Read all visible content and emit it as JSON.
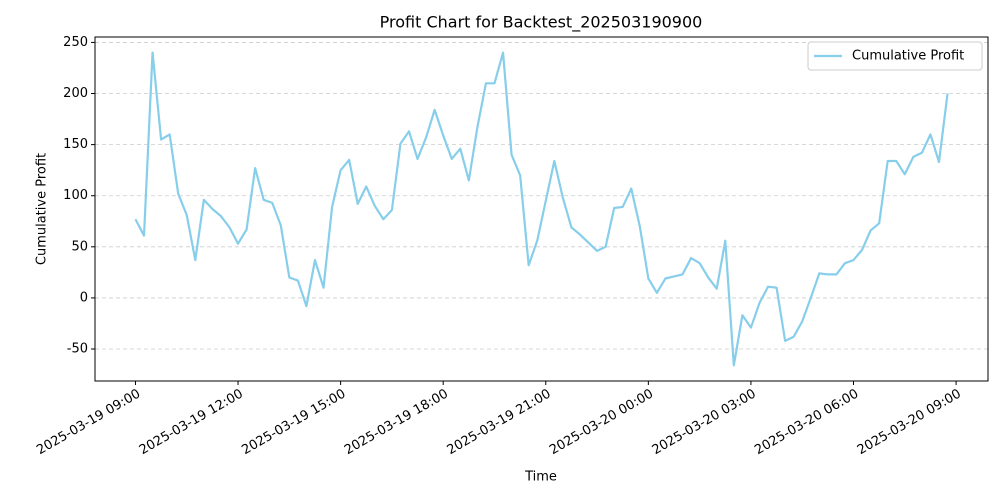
{
  "chart_data": {
    "type": "line",
    "title": "Profit Chart for Backtest_202503190900",
    "x_label": "Time",
    "y_label": "Cumulative Profit",
    "x": [
      "2025-03-19 09:00",
      "2025-03-19 09:15",
      "2025-03-19 09:30",
      "2025-03-19 09:45",
      "2025-03-19 10:00",
      "2025-03-19 10:15",
      "2025-03-19 10:30",
      "2025-03-19 10:45",
      "2025-03-19 11:00",
      "2025-03-19 11:15",
      "2025-03-19 11:30",
      "2025-03-19 11:45",
      "2025-03-19 12:00",
      "2025-03-19 12:15",
      "2025-03-19 12:30",
      "2025-03-19 12:45",
      "2025-03-19 13:00",
      "2025-03-19 13:15",
      "2025-03-19 13:30",
      "2025-03-19 13:45",
      "2025-03-19 14:00",
      "2025-03-19 14:15",
      "2025-03-19 14:30",
      "2025-03-19 14:45",
      "2025-03-19 15:00",
      "2025-03-19 15:15",
      "2025-03-19 15:30",
      "2025-03-19 15:45",
      "2025-03-19 16:00",
      "2025-03-19 16:15",
      "2025-03-19 16:30",
      "2025-03-19 16:45",
      "2025-03-19 17:00",
      "2025-03-19 17:15",
      "2025-03-19 17:30",
      "2025-03-19 17:45",
      "2025-03-19 18:00",
      "2025-03-19 18:15",
      "2025-03-19 18:30",
      "2025-03-19 18:45",
      "2025-03-19 19:00",
      "2025-03-19 19:15",
      "2025-03-19 19:30",
      "2025-03-19 19:45",
      "2025-03-19 20:00",
      "2025-03-19 20:15",
      "2025-03-19 20:30",
      "2025-03-19 20:45",
      "2025-03-19 21:00",
      "2025-03-19 21:15",
      "2025-03-19 21:30",
      "2025-03-19 21:45",
      "2025-03-19 22:00",
      "2025-03-19 22:15",
      "2025-03-19 22:30",
      "2025-03-19 22:45",
      "2025-03-19 23:00",
      "2025-03-19 23:15",
      "2025-03-19 23:30",
      "2025-03-19 23:45",
      "2025-03-20 00:00",
      "2025-03-20 00:15",
      "2025-03-20 00:30",
      "2025-03-20 00:45",
      "2025-03-20 01:00",
      "2025-03-20 01:15",
      "2025-03-20 01:30",
      "2025-03-20 01:45",
      "2025-03-20 02:00",
      "2025-03-20 02:15",
      "2025-03-20 02:30",
      "2025-03-20 02:45",
      "2025-03-20 03:00",
      "2025-03-20 03:15",
      "2025-03-20 03:30",
      "2025-03-20 03:45",
      "2025-03-20 04:00",
      "2025-03-20 04:15",
      "2025-03-20 04:30",
      "2025-03-20 04:45",
      "2025-03-20 05:00",
      "2025-03-20 05:15",
      "2025-03-20 05:30",
      "2025-03-20 05:45",
      "2025-03-20 06:00",
      "2025-03-20 06:15",
      "2025-03-20 06:30",
      "2025-03-20 06:45",
      "2025-03-20 07:00",
      "2025-03-20 07:15",
      "2025-03-20 07:30",
      "2025-03-20 07:45",
      "2025-03-20 08:00",
      "2025-03-20 08:15",
      "2025-03-20 08:30",
      "2025-03-20 08:45"
    ],
    "series": [
      {
        "name": "Cumulative Profit",
        "color": "#87ceeb",
        "values": [
          77,
          61,
          240,
          155,
          160,
          102,
          81,
          37,
          96,
          87,
          80,
          69,
          53,
          67,
          127,
          96,
          93,
          71,
          20,
          17,
          -8,
          37,
          10,
          89,
          125,
          135,
          92,
          109,
          90,
          77,
          86,
          151,
          163,
          136,
          157,
          184,
          159,
          136,
          146,
          115,
          167,
          210,
          210,
          240,
          140,
          120,
          32,
          56,
          95,
          134,
          98,
          69,
          62,
          54,
          46,
          50,
          88,
          89,
          107,
          70,
          19,
          5,
          19,
          21,
          23,
          39,
          34,
          20,
          9,
          56,
          -66,
          -17,
          -29,
          -5,
          11,
          10,
          -42,
          -38,
          -23,
          0,
          24,
          23,
          23,
          34,
          37,
          47,
          66,
          73,
          134,
          134,
          121,
          138,
          142,
          160,
          133,
          200
        ]
      }
    ],
    "xlim": [
      "2025-03-19 07:49",
      "2025-03-20 09:56"
    ],
    "xticks": [
      "2025-03-19 09:00",
      "2025-03-19 12:00",
      "2025-03-19 15:00",
      "2025-03-19 18:00",
      "2025-03-19 21:00",
      "2025-03-20 00:00",
      "2025-03-20 03:00",
      "2025-03-20 06:00",
      "2025-03-20 09:00"
    ],
    "ylim": [
      -81.3,
      255.3
    ],
    "yticks": [
      -50,
      0,
      50,
      100,
      150,
      200,
      250
    ],
    "grid": true,
    "legend": "upper right"
  }
}
